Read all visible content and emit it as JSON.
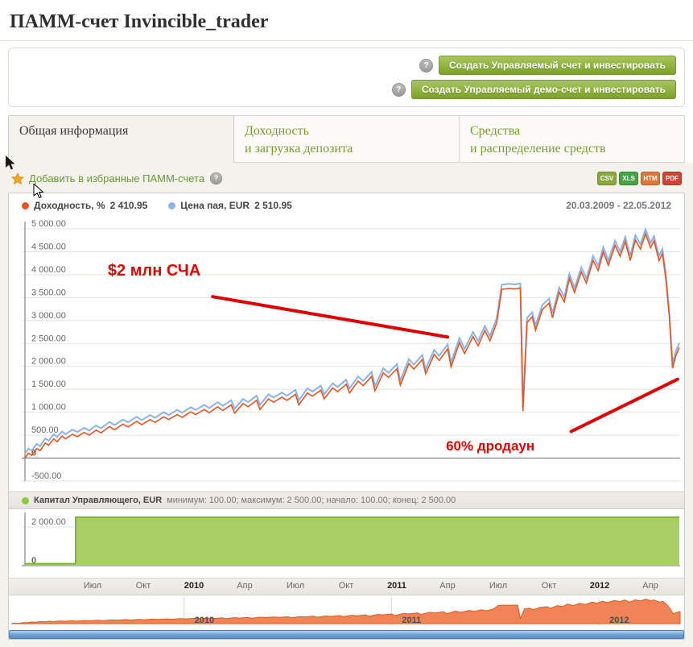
{
  "page": {
    "title": "ПАММ-счет Invincible_trader"
  },
  "help": {
    "symbol": "?"
  },
  "actions": {
    "create_real": "Создать Управляемый счет и инвестировать",
    "create_demo": "Создать Управляемый демо-счет и инвестировать"
  },
  "tabs": [
    {
      "id": "general",
      "label": "Общая информация",
      "active": true
    },
    {
      "id": "profitability",
      "label": "Доходность\nи загрузка депозита",
      "active": false
    },
    {
      "id": "funds",
      "label": "Средства\nи распределение средств",
      "active": false
    }
  ],
  "favorites": {
    "label": "Добавить в избранные ПАММ-счета"
  },
  "export_icons": [
    {
      "label": "CSV",
      "color": "#8aa83c"
    },
    {
      "label": "XLS",
      "color": "#4ba146"
    },
    {
      "label": "HTM",
      "color": "#d9783a"
    },
    {
      "label": "PDF",
      "color": "#cc4437"
    }
  ],
  "chart_data": {
    "type": "line",
    "date_range": "20.03.2009 - 22.05.2012",
    "main": {
      "x_range_months": [
        0,
        38.7
      ],
      "y_range": [
        -500,
        5000
      ],
      "grid": true,
      "legend_position": "top",
      "annotation_color": "#e10000",
      "series": [
        {
          "name": "Доходность, %",
          "final_value": "2 410.95",
          "color": "#e8541e",
          "points": [
            [
              0,
              0
            ],
            [
              0.2,
              110
            ],
            [
              0.4,
              60
            ],
            [
              0.7,
              210
            ],
            [
              0.9,
              160
            ],
            [
              1.2,
              330
            ],
            [
              1.4,
              280
            ],
            [
              1.7,
              420
            ],
            [
              1.9,
              360
            ],
            [
              2.2,
              480
            ],
            [
              2.4,
              420
            ],
            [
              2.8,
              520
            ],
            [
              3.1,
              470
            ],
            [
              3.5,
              560
            ],
            [
              3.8,
              500
            ],
            [
              4.2,
              610
            ],
            [
              4.5,
              550
            ],
            [
              5,
              690
            ],
            [
              5.3,
              620
            ],
            [
              5.8,
              740
            ],
            [
              6.1,
              680
            ],
            [
              6.6,
              800
            ],
            [
              6.9,
              730
            ],
            [
              7.4,
              840
            ],
            [
              7.7,
              780
            ],
            [
              8.2,
              900
            ],
            [
              8.5,
              840
            ],
            [
              9,
              950
            ],
            [
              9.3,
              890
            ],
            [
              9.8,
              1010
            ],
            [
              10.1,
              950
            ],
            [
              10.6,
              1060
            ],
            [
              10.9,
              990
            ],
            [
              11.4,
              1120
            ],
            [
              11.7,
              1040
            ],
            [
              12.2,
              1160
            ],
            [
              12.4,
              980
            ],
            [
              12.9,
              1190
            ],
            [
              13.2,
              1120
            ],
            [
              13.7,
              1260
            ],
            [
              13.9,
              1060
            ],
            [
              14.4,
              1290
            ],
            [
              14.7,
              1220
            ],
            [
              15.2,
              1330
            ],
            [
              15.5,
              1260
            ],
            [
              16,
              1390
            ],
            [
              16.2,
              1160
            ],
            [
              16.7,
              1420
            ],
            [
              17,
              1350
            ],
            [
              17.5,
              1480
            ],
            [
              17.7,
              1290
            ],
            [
              18.2,
              1530
            ],
            [
              18.5,
              1450
            ],
            [
              19,
              1610
            ],
            [
              19.2,
              1420
            ],
            [
              19.7,
              1680
            ],
            [
              20,
              1580
            ],
            [
              20.5,
              1780
            ],
            [
              20.7,
              1470
            ],
            [
              21.2,
              1860
            ],
            [
              21.5,
              1760
            ],
            [
              22,
              1950
            ],
            [
              22.2,
              1590
            ],
            [
              22.7,
              2060
            ],
            [
              23,
              1940
            ],
            [
              23.5,
              2150
            ],
            [
              23.7,
              1840
            ],
            [
              24.2,
              2260
            ],
            [
              24.5,
              2130
            ],
            [
              25,
              2380
            ],
            [
              25.2,
              1990
            ],
            [
              25.7,
              2520
            ],
            [
              26,
              2280
            ],
            [
              26.5,
              2650
            ],
            [
              26.8,
              2450
            ],
            [
              27.2,
              2780
            ],
            [
              27.5,
              2560
            ],
            [
              27.9,
              2950
            ],
            [
              28.2,
              3680
            ],
            [
              28.6,
              3700
            ],
            [
              29,
              3690
            ],
            [
              29.3,
              3710
            ],
            [
              29.45,
              1020
            ],
            [
              29.7,
              2960
            ],
            [
              30,
              3080
            ],
            [
              30.2,
              2790
            ],
            [
              30.6,
              3240
            ],
            [
              31,
              3380
            ],
            [
              31.2,
              3060
            ],
            [
              31.6,
              3620
            ],
            [
              31.9,
              3410
            ],
            [
              32.2,
              3920
            ],
            [
              32.5,
              3610
            ],
            [
              32.9,
              4060
            ],
            [
              33.2,
              3820
            ],
            [
              33.6,
              4310
            ],
            [
              33.9,
              4090
            ],
            [
              34.2,
              4500
            ],
            [
              34.5,
              4210
            ],
            [
              34.9,
              4640
            ],
            [
              35.2,
              4400
            ],
            [
              35.5,
              4720
            ],
            [
              35.8,
              4310
            ],
            [
              36.1,
              4760
            ],
            [
              36.4,
              4560
            ],
            [
              36.7,
              4890
            ],
            [
              37,
              4590
            ],
            [
              37.2,
              4740
            ],
            [
              37.5,
              4310
            ],
            [
              37.7,
              4460
            ],
            [
              37.9,
              3920
            ],
            [
              38.1,
              3120
            ],
            [
              38.3,
              1960
            ],
            [
              38.5,
              2240
            ],
            [
              38.7,
              2410.95
            ]
          ]
        },
        {
          "name": "Цена пая, EUR",
          "final_value": "2 510.95",
          "color": "#8ab4e8",
          "derived": "returns_points_plus_100"
        }
      ],
      "y_ticks": [
        {
          "v": 5000,
          "label": "5 000.00"
        },
        {
          "v": 4500,
          "label": "4 500.00"
        },
        {
          "v": 4000,
          "label": "4 000.00"
        },
        {
          "v": 3500,
          "label": "3 500.00"
        },
        {
          "v": 3000,
          "label": "3 000.00"
        },
        {
          "v": 2500,
          "label": "2 500.00"
        },
        {
          "v": 2000,
          "label": "2 000.00"
        },
        {
          "v": 1500,
          "label": "1 500.00"
        },
        {
          "v": 1000,
          "label": "1 000.00"
        },
        {
          "v": 500,
          "label": "500.00"
        },
        {
          "v": 0,
          "label": "0"
        },
        {
          "v": -500,
          "label": "-500.00"
        }
      ],
      "annotations": [
        {
          "text": "$2 млн СЧА",
          "text_at": [
            4.9,
            3980
          ],
          "font_size": 20,
          "line": {
            "from": [
              11.1,
              3520
            ],
            "to": [
              25,
              2640
            ]
          }
        },
        {
          "text": "60% дродаун",
          "text_at": [
            24.9,
            170
          ],
          "font_size": 17,
          "line": {
            "from": [
              32.3,
              580
            ],
            "to": [
              38.6,
              1720
            ]
          }
        }
      ]
    },
    "capital": {
      "name": "Капитал Управляющего, EUR",
      "stats": "минимум: 100.00; максимум: 2 500.00; начало: 100.00; конец: 2 500.00",
      "color": "#a8cf63",
      "line_color": "#82b23e",
      "dot_color": "#8dc63f",
      "y_max": 2500,
      "points": [
        [
          0,
          100
        ],
        [
          3,
          100
        ],
        [
          3,
          2500
        ],
        [
          38.7,
          2500
        ]
      ],
      "y_ticks": [
        {
          "v": 2000,
          "label": "2 000.00"
        },
        {
          "v": 0,
          "label": "0"
        }
      ]
    },
    "x_ticks": [
      {
        "m": 4,
        "label": "Июл"
      },
      {
        "m": 7,
        "label": "Окт"
      },
      {
        "m": 10,
        "label": "2010",
        "year": true
      },
      {
        "m": 13,
        "label": "Апр"
      },
      {
        "m": 16,
        "label": "Июл"
      },
      {
        "m": 19,
        "label": "Окт"
      },
      {
        "m": 22,
        "label": "2011",
        "year": true
      },
      {
        "m": 25,
        "label": "Апр"
      },
      {
        "m": 28,
        "label": "Июл"
      },
      {
        "m": 31,
        "label": "Окт"
      },
      {
        "m": 34,
        "label": "2012",
        "year": true
      },
      {
        "m": 37,
        "label": "Апр"
      }
    ],
    "navigator": {
      "color": "#f08457",
      "line_color": "#e2571f",
      "year_marks": [
        {
          "m": 10,
          "label": "2010"
        },
        {
          "m": 22,
          "label": "2011"
        },
        {
          "m": 34,
          "label": "2012"
        }
      ]
    }
  }
}
